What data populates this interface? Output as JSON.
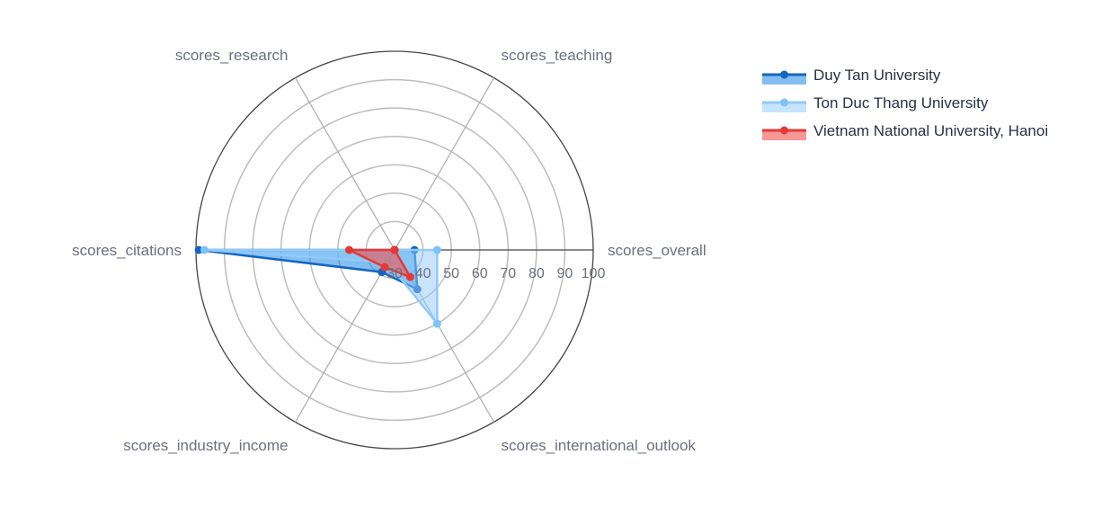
{
  "chart_data": {
    "type": "radar",
    "axes": [
      "scores_overall",
      "scores_teaching",
      "scores_research",
      "scores_citations",
      "scores_industry_income",
      "scores_international_outlook"
    ],
    "radial_range": [
      30,
      100
    ],
    "radial_ticks": [
      "30",
      "40",
      "50",
      "60",
      "70",
      "80",
      "90",
      "100"
    ],
    "legend_position": "top-right",
    "series": [
      {
        "name": "Duy Tan University",
        "values": [
          37,
          26,
          27,
          99,
          39,
          46
        ],
        "line_color": "#1565c0",
        "marker_color": "#1565c0",
        "fill_color": "#1e88e5",
        "fill_opacity": 0.55
      },
      {
        "name": "Ton Duc Thang University",
        "values": [
          45,
          23,
          23,
          97,
          35,
          60
        ],
        "line_color": "#90caf9",
        "marker_color": "#7cc3f7",
        "fill_color": "#90caf9",
        "fill_opacity": 0.5
      },
      {
        "name": "Vietnam National University, Hanoi",
        "values": [
          30,
          22,
          22,
          46,
          37,
          41
        ],
        "line_color": "#e53935",
        "marker_color": "#e53935",
        "fill_color": "#ef5350",
        "fill_opacity": 0.6
      }
    ]
  }
}
